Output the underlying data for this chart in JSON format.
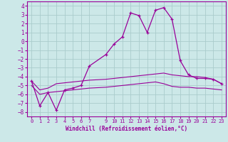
{
  "xlabel": "Windchill (Refroidissement éolien,°C)",
  "background_color": "#cce8e8",
  "grid_color": "#aacccc",
  "line_color": "#990099",
  "xlim": [
    -0.5,
    23.5
  ],
  "ylim": [
    -8.5,
    4.5
  ],
  "yticks": [
    4,
    3,
    2,
    1,
    0,
    -1,
    -2,
    -3,
    -4,
    -5,
    -6,
    -7,
    -8
  ],
  "xtick_positions": [
    0,
    1,
    2,
    3,
    4,
    5,
    6,
    7,
    9,
    10,
    11,
    12,
    13,
    14,
    15,
    16,
    17,
    18,
    19,
    20,
    21,
    22,
    23
  ],
  "xtick_labels": [
    "0",
    "1",
    "2",
    "3",
    "4",
    "5",
    "6",
    "7",
    "9",
    "10",
    "11",
    "12",
    "13",
    "14",
    "15",
    "16",
    "17",
    "18",
    "19",
    "20",
    "21",
    "22",
    "23"
  ],
  "hours": [
    0,
    1,
    2,
    3,
    4,
    5,
    6,
    7,
    9,
    10,
    11,
    12,
    13,
    14,
    15,
    16,
    17,
    18,
    19,
    20,
    21,
    22,
    23
  ],
  "windchill_main": [
    -4.5,
    -7.3,
    -5.8,
    -7.8,
    -5.5,
    -5.3,
    -5.0,
    -2.8,
    -1.5,
    -0.3,
    0.5,
    3.2,
    2.9,
    1.0,
    3.5,
    3.8,
    2.5,
    -2.2,
    -3.8,
    -4.2,
    -4.2,
    -4.3,
    -4.8
  ],
  "band_upper": [
    -4.5,
    -5.5,
    -5.3,
    -4.8,
    -4.7,
    -4.6,
    -4.5,
    -4.4,
    -4.3,
    -4.2,
    -4.1,
    -4.0,
    -3.9,
    -3.8,
    -3.7,
    -3.6,
    -3.8,
    -3.9,
    -4.0,
    -4.0,
    -4.1,
    -4.3,
    -4.8
  ],
  "band_lower": [
    -5.0,
    -6.0,
    -5.8,
    -5.7,
    -5.6,
    -5.5,
    -5.4,
    -5.3,
    -5.2,
    -5.1,
    -5.0,
    -4.9,
    -4.8,
    -4.7,
    -4.6,
    -4.8,
    -5.1,
    -5.2,
    -5.2,
    -5.3,
    -5.3,
    -5.4,
    -5.5
  ]
}
